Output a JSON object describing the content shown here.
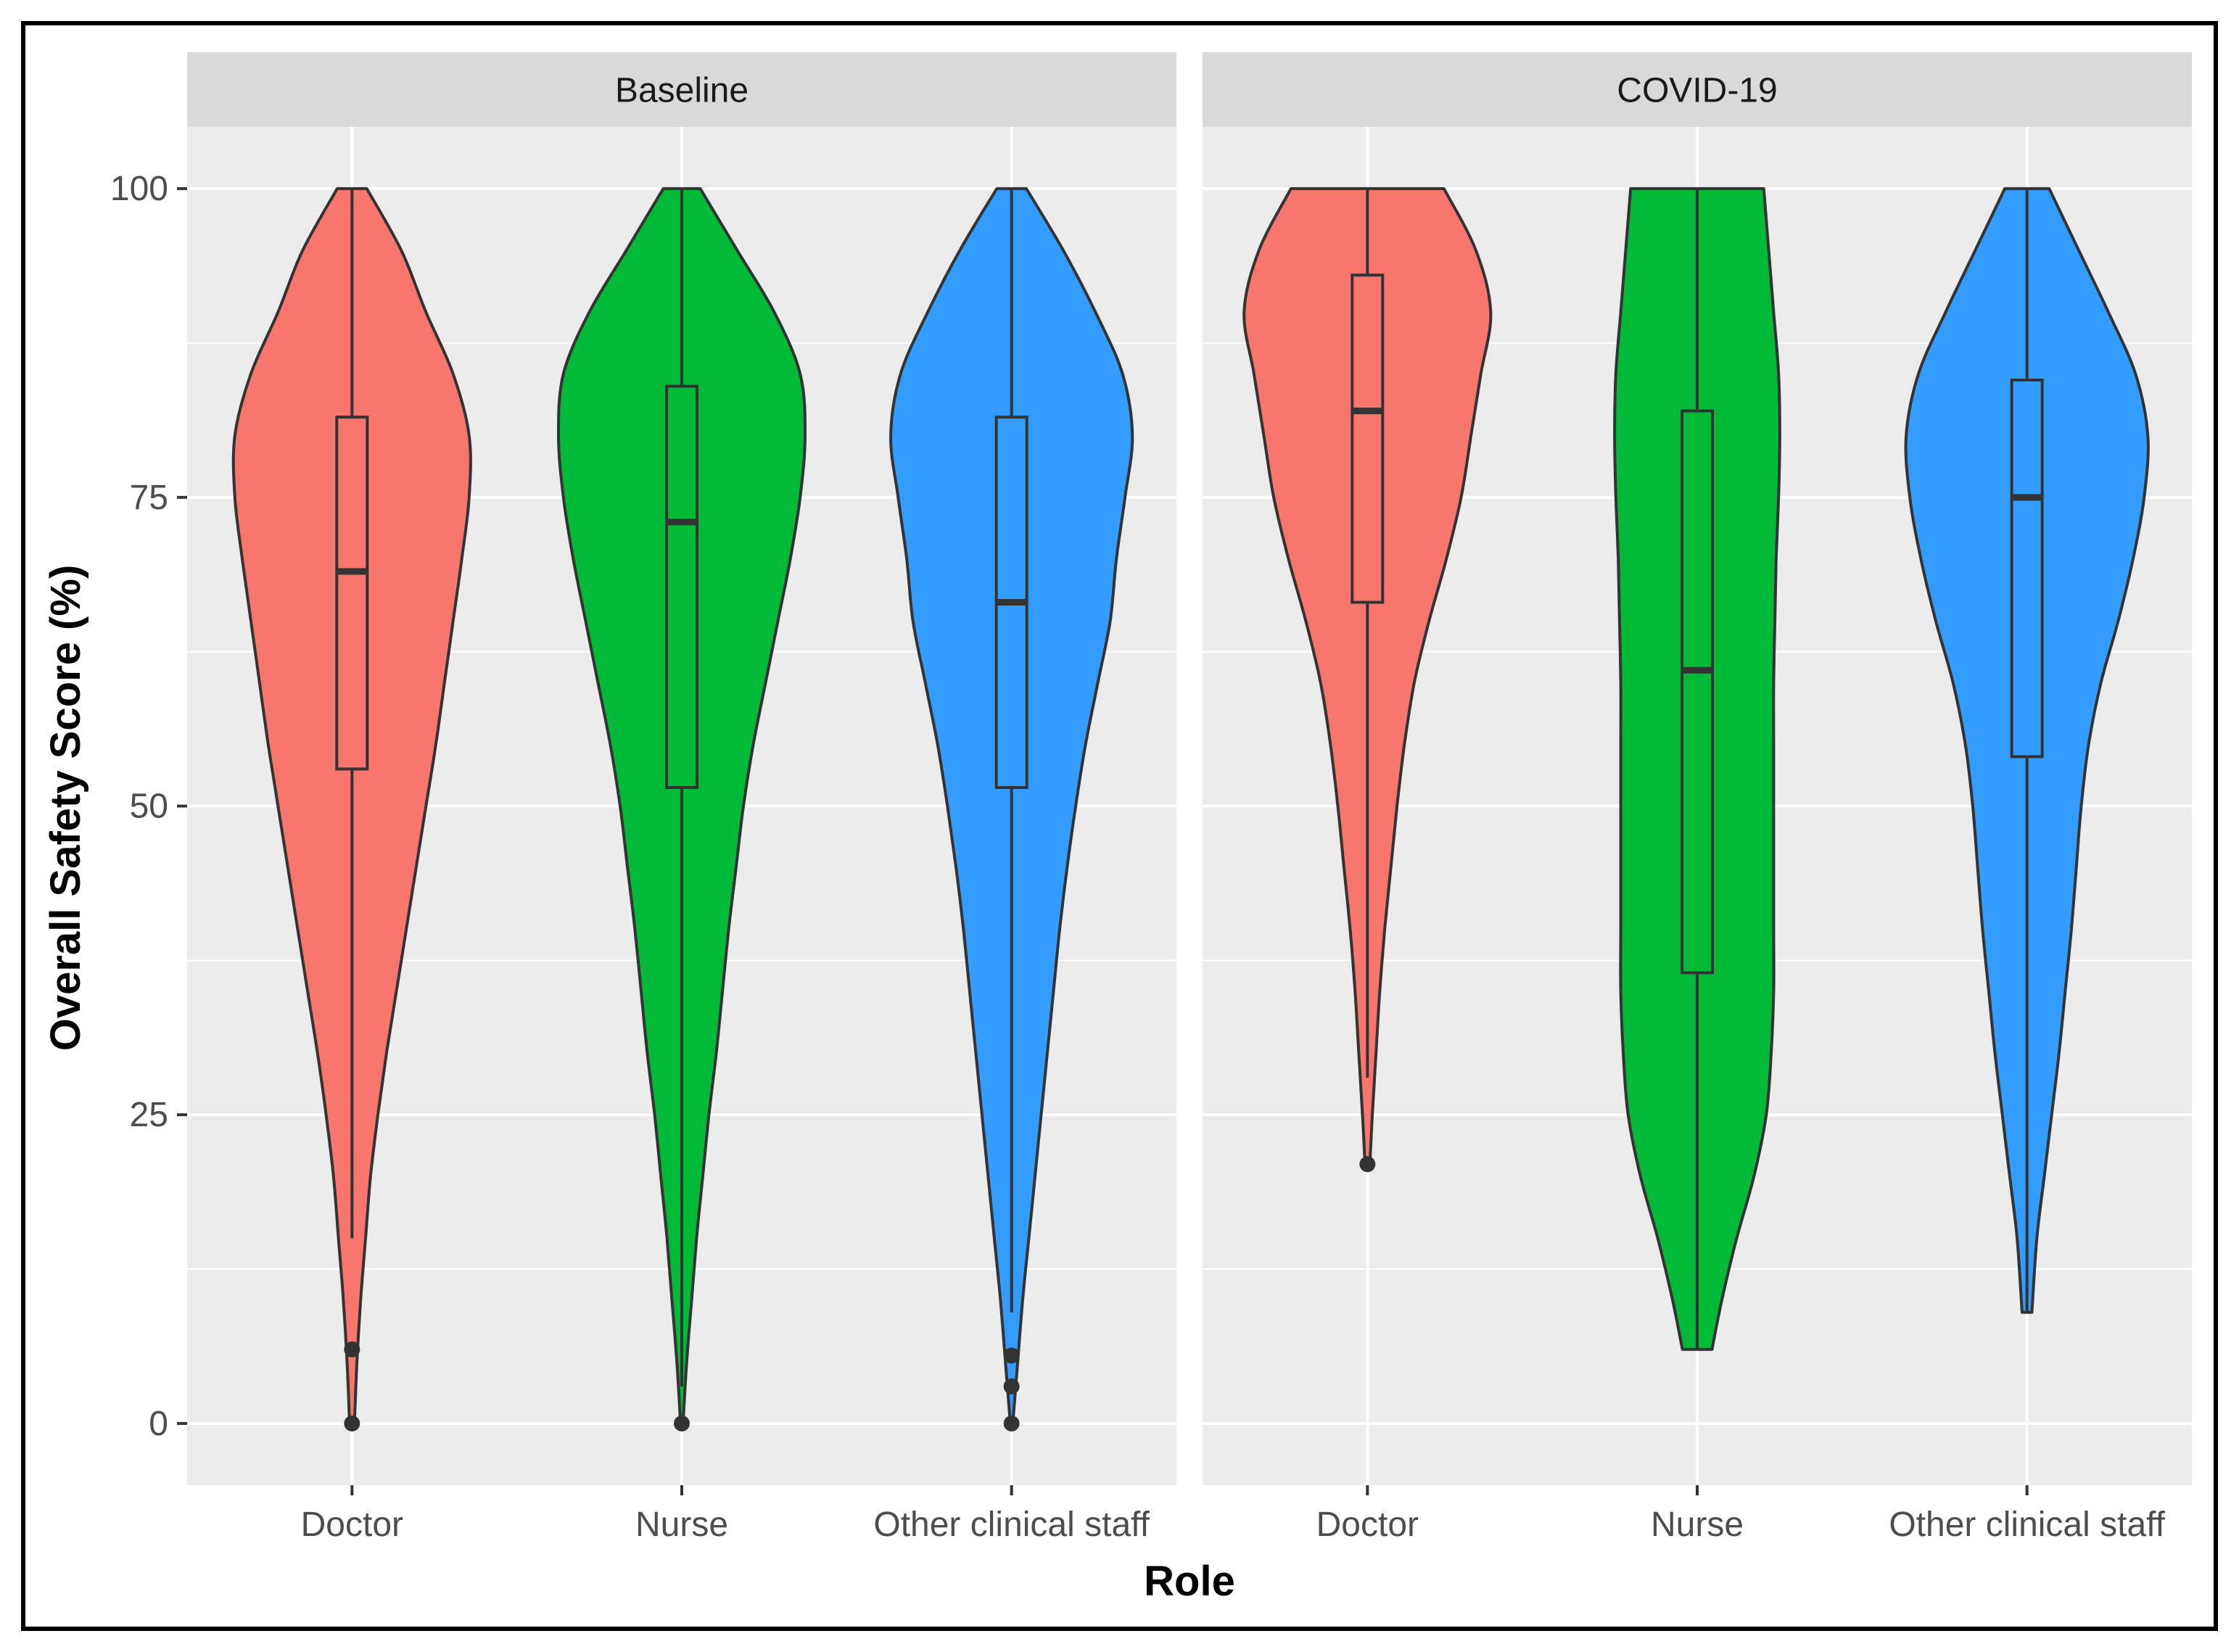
{
  "chart_data": {
    "type": "violin",
    "title": "",
    "xlabel": "Role",
    "ylabel": "Overall Safety Score (%)",
    "ylim": [
      -5,
      105
    ],
    "yticks": [
      0,
      25,
      50,
      75,
      100
    ],
    "categories": [
      "Doctor",
      "Nurse",
      "Other clinical staff"
    ],
    "colors": {
      "Doctor": "#F8766D",
      "Nurse": "#00BA38",
      "Other clinical staff": "#339CFF",
      "panel_background": "#EBEBEB",
      "strip_background": "#D9D9D9",
      "grid": "#FFFFFF",
      "outline": "#333333"
    },
    "facets": [
      {
        "label": "Baseline",
        "violins": [
          {
            "role": "Doctor",
            "min": 0,
            "max": 100,
            "density_y": [
              0,
              5,
              10,
              15,
              20,
              25,
              30,
              35,
              40,
              45,
              50,
              55,
              60,
              65,
              70,
              75,
              80,
              85,
              90,
              95,
              100
            ],
            "density_w": [
              0.02,
              0.04,
              0.07,
              0.11,
              0.15,
              0.21,
              0.28,
              0.36,
              0.44,
              0.52,
              0.6,
              0.68,
              0.75,
              0.82,
              0.89,
              0.95,
              0.95,
              0.82,
              0.6,
              0.4,
              0.12
            ],
            "box": {
              "q1": 53,
              "median": 69,
              "q3": 81.5,
              "whisker_low": 15,
              "whisker_high": 100
            },
            "outliers": [
              0,
              6
            ]
          },
          {
            "role": "Nurse",
            "min": 0,
            "max": 100,
            "density_y": [
              0,
              5,
              10,
              15,
              20,
              25,
              30,
              35,
              40,
              45,
              50,
              55,
              60,
              65,
              70,
              75,
              80,
              85,
              90,
              95,
              100
            ],
            "density_w": [
              0.01,
              0.04,
              0.08,
              0.12,
              0.17,
              0.22,
              0.28,
              0.33,
              0.38,
              0.44,
              0.5,
              0.58,
              0.68,
              0.78,
              0.88,
              0.96,
              1.0,
              0.96,
              0.75,
              0.45,
              0.15
            ],
            "box": {
              "q1": 51.5,
              "median": 73,
              "q3": 84,
              "whisker_low": 3,
              "whisker_high": 100
            },
            "outliers": [
              0
            ]
          },
          {
            "role": "Other clinical staff",
            "min": 0,
            "max": 100,
            "density_y": [
              0,
              5,
              10,
              15,
              20,
              25,
              30,
              35,
              40,
              45,
              50,
              55,
              60,
              65,
              70,
              75,
              80,
              85,
              90,
              95,
              100
            ],
            "density_w": [
              0.01,
              0.05,
              0.09,
              0.14,
              0.19,
              0.24,
              0.29,
              0.34,
              0.39,
              0.45,
              0.52,
              0.6,
              0.7,
              0.8,
              0.85,
              0.92,
              0.98,
              0.9,
              0.68,
              0.42,
              0.12
            ],
            "box": {
              "q1": 51.5,
              "median": 66.5,
              "q3": 81.5,
              "whisker_low": 9,
              "whisker_high": 100
            },
            "outliers": [
              0,
              3,
              5.5
            ]
          }
        ]
      },
      {
        "label": "COVID-19",
        "violins": [
          {
            "role": "Doctor",
            "min": 21,
            "max": 100,
            "density_y": [
              21,
              25,
              30,
              35,
              40,
              45,
              50,
              55,
              60,
              65,
              70,
              75,
              80,
              85,
              90,
              95,
              100
            ],
            "density_w": [
              0.02,
              0.04,
              0.07,
              0.1,
              0.14,
              0.19,
              0.24,
              0.3,
              0.38,
              0.5,
              0.64,
              0.76,
              0.84,
              0.92,
              1.0,
              0.88,
              0.62
            ],
            "box": {
              "q1": 66.5,
              "median": 82,
              "q3": 93,
              "whisker_low": 28,
              "whisker_high": 100
            },
            "outliers": [
              21
            ]
          },
          {
            "role": "Nurse",
            "min": 6,
            "max": 100,
            "density_y": [
              6,
              10,
              15,
              20,
              25,
              30,
              35,
              40,
              45,
              50,
              55,
              60,
              65,
              70,
              75,
              80,
              85,
              90,
              95,
              100
            ],
            "density_w": [
              0.12,
              0.2,
              0.32,
              0.46,
              0.56,
              0.6,
              0.62,
              0.62,
              0.62,
              0.62,
              0.62,
              0.62,
              0.63,
              0.64,
              0.66,
              0.67,
              0.66,
              0.62,
              0.58,
              0.54
            ],
            "box": {
              "q1": 36.5,
              "median": 61,
              "q3": 82,
              "whisker_low": 6,
              "whisker_high": 100
            },
            "outliers": []
          },
          {
            "role": "Other clinical staff",
            "min": 9,
            "max": 100,
            "density_y": [
              9,
              15,
              20,
              25,
              30,
              35,
              40,
              45,
              50,
              55,
              60,
              65,
              70,
              75,
              80,
              85,
              90,
              95,
              100
            ],
            "density_w": [
              0.04,
              0.08,
              0.14,
              0.2,
              0.26,
              0.31,
              0.36,
              0.4,
              0.44,
              0.5,
              0.6,
              0.74,
              0.86,
              0.95,
              0.98,
              0.88,
              0.66,
              0.42,
              0.18
            ],
            "box": {
              "q1": 54,
              "median": 75,
              "q3": 84.5,
              "whisker_low": 9,
              "whisker_high": 100
            },
            "outliers": []
          }
        ]
      }
    ]
  }
}
